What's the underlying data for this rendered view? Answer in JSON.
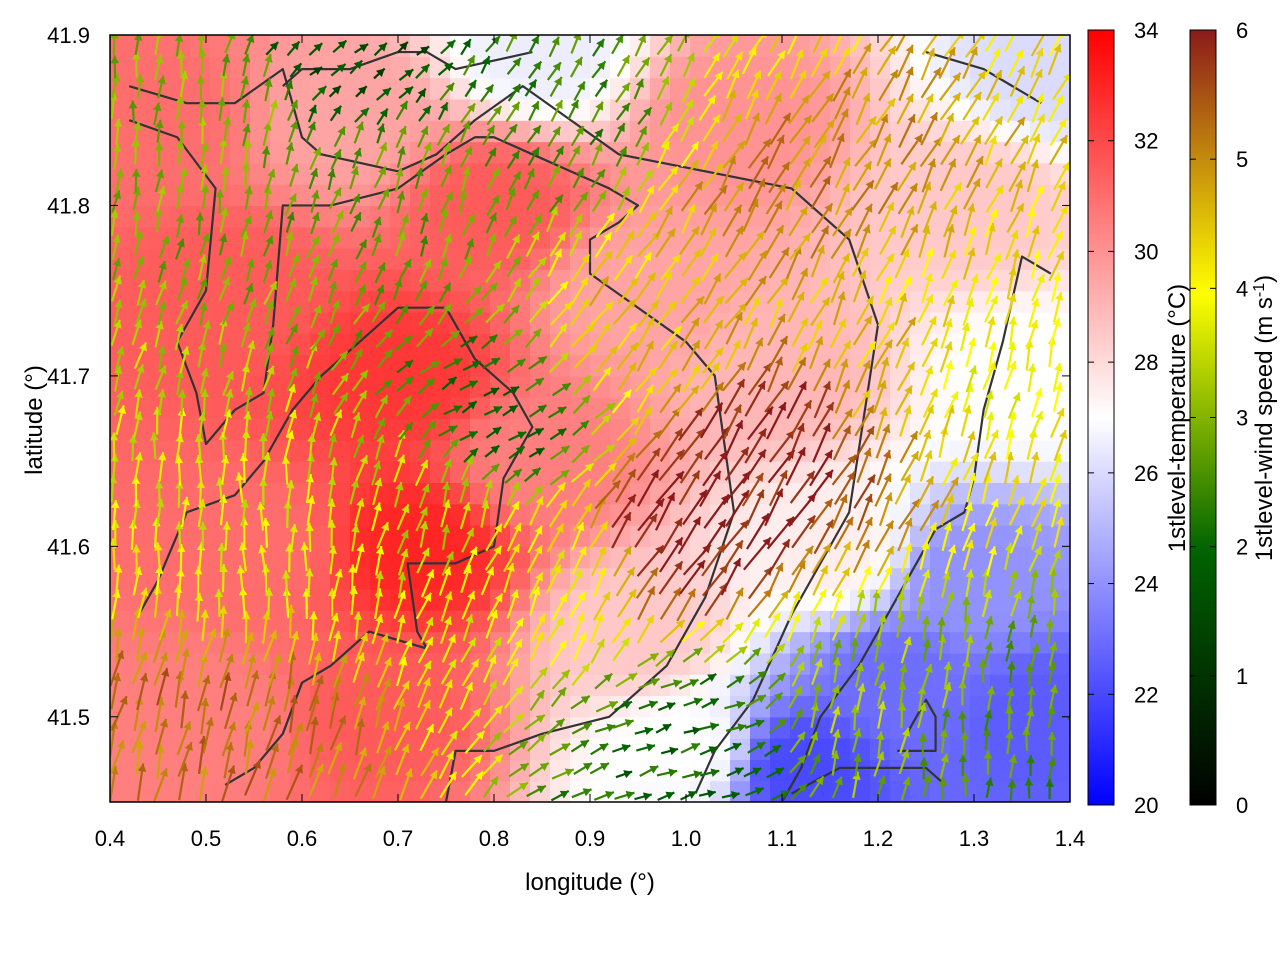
{
  "chart_data": {
    "type": "heatmap",
    "subtype": "vector field over colour-mapped temperature with contour lines",
    "xlabel": "longitude (°)",
    "ylabel": "latitude (°)",
    "xlim": [
      0.4,
      1.4
    ],
    "ylim": [
      41.45,
      41.9
    ],
    "xticks": [
      "0.4",
      "0.5",
      "0.6",
      "0.7",
      "0.8",
      "0.9",
      "1.0",
      "1.1",
      "1.2",
      "1.3",
      "1.4"
    ],
    "yticks": [
      "41.5",
      "41.6",
      "41.7",
      "41.8",
      "41.9"
    ],
    "grid": false,
    "temperature_colorbar": {
      "label": "1stlevel-temperature (°C)",
      "range": [
        20,
        34
      ],
      "ticks": [
        "20",
        "22",
        "24",
        "26",
        "28",
        "30",
        "32",
        "34"
      ],
      "colors": [
        "#0000ff",
        "#ffffff",
        "#ff0000"
      ]
    },
    "wind_colorbar": {
      "label_main": "1stlevel-wind speed (m s",
      "label_sup": "-1",
      "label_end": ")",
      "range": [
        0,
        6
      ],
      "ticks": [
        "0",
        "1",
        "2",
        "3",
        "4",
        "5",
        "6"
      ],
      "colors": [
        "#000000",
        "#006400",
        "#ffff00",
        "#8b1a1a"
      ]
    },
    "temperature_field": [
      {
        "lon": 0.45,
        "lat": 41.85,
        "t": 31.0
      },
      {
        "lon": 0.52,
        "lat": 41.75,
        "t": 31.5
      },
      {
        "lon": 0.55,
        "lat": 41.6,
        "t": 31.0
      },
      {
        "lon": 0.5,
        "lat": 41.5,
        "t": 30.5
      },
      {
        "lon": 0.65,
        "lat": 41.85,
        "t": 29.5
      },
      {
        "lon": 0.7,
        "lat": 41.7,
        "t": 32.5
      },
      {
        "lon": 0.72,
        "lat": 41.6,
        "t": 33.0
      },
      {
        "lon": 0.68,
        "lat": 41.5,
        "t": 31.5
      },
      {
        "lon": 0.8,
        "lat": 41.8,
        "t": 31.5
      },
      {
        "lon": 0.85,
        "lat": 41.65,
        "t": 30.5
      },
      {
        "lon": 0.95,
        "lat": 41.75,
        "t": 29.5
      },
      {
        "lon": 0.95,
        "lat": 41.55,
        "t": 28.5
      },
      {
        "lon": 1.0,
        "lat": 41.48,
        "t": 27.0
      },
      {
        "lon": 1.05,
        "lat": 41.85,
        "t": 30.0
      },
      {
        "lon": 1.1,
        "lat": 41.7,
        "t": 29.0
      },
      {
        "lon": 1.15,
        "lat": 41.6,
        "t": 27.5
      },
      {
        "lon": 1.12,
        "lat": 41.47,
        "t": 22.0
      },
      {
        "lon": 1.22,
        "lat": 41.52,
        "t": 23.0
      },
      {
        "lon": 1.3,
        "lat": 41.58,
        "t": 24.0
      },
      {
        "lon": 1.38,
        "lat": 41.5,
        "t": 22.5
      },
      {
        "lon": 1.3,
        "lat": 41.8,
        "t": 28.5
      },
      {
        "lon": 1.35,
        "lat": 41.7,
        "t": 27.0
      },
      {
        "lon": 0.85,
        "lat": 41.89,
        "t": 26.5
      },
      {
        "lon": 1.38,
        "lat": 41.88,
        "t": 26.0
      }
    ],
    "wind_field": [
      {
        "lon": 0.5,
        "lat": 41.85,
        "speed": 3.0,
        "dir_deg": 95
      },
      {
        "lon": 0.55,
        "lat": 41.6,
        "speed": 3.8,
        "dir_deg": 90
      },
      {
        "lon": 0.52,
        "lat": 41.49,
        "speed": 5.2,
        "dir_deg": 105
      },
      {
        "lon": 0.7,
        "lat": 41.8,
        "speed": 2.8,
        "dir_deg": 110
      },
      {
        "lon": 0.72,
        "lat": 41.62,
        "speed": 3.5,
        "dir_deg": 105
      },
      {
        "lon": 0.85,
        "lat": 41.85,
        "speed": 2.5,
        "dir_deg": 120
      },
      {
        "lon": 0.85,
        "lat": 41.58,
        "speed": 4.0,
        "dir_deg": 115
      },
      {
        "lon": 0.95,
        "lat": 41.72,
        "speed": 4.5,
        "dir_deg": 125
      },
      {
        "lon": 0.98,
        "lat": 41.6,
        "speed": 6.0,
        "dir_deg": 125
      },
      {
        "lon": 1.08,
        "lat": 41.65,
        "speed": 6.0,
        "dir_deg": 120
      },
      {
        "lon": 1.1,
        "lat": 41.8,
        "speed": 5.0,
        "dir_deg": 120
      },
      {
        "lon": 1.2,
        "lat": 41.7,
        "speed": 4.5,
        "dir_deg": 115
      },
      {
        "lon": 1.3,
        "lat": 41.7,
        "speed": 4.0,
        "dir_deg": 105
      },
      {
        "lon": 1.2,
        "lat": 41.5,
        "speed": 3.2,
        "dir_deg": 100
      },
      {
        "lon": 1.33,
        "lat": 41.48,
        "speed": 2.6,
        "dir_deg": 95
      },
      {
        "lon": 1.0,
        "lat": 41.48,
        "speed": 2.0,
        "dir_deg": 160
      },
      {
        "lon": 0.8,
        "lat": 41.67,
        "speed": 2.0,
        "dir_deg": 150
      },
      {
        "lon": 0.65,
        "lat": 41.89,
        "speed": 1.5,
        "dir_deg": 140
      }
    ],
    "contour_lines": [
      [
        [
          0.42,
          41.87
        ],
        [
          0.48,
          41.86
        ],
        [
          0.53,
          41.86
        ],
        [
          0.58,
          41.88
        ],
        [
          0.6,
          41.84
        ],
        [
          0.62,
          41.83
        ],
        [
          0.7,
          41.82
        ],
        [
          0.74,
          41.83
        ],
        [
          0.78,
          41.85
        ],
        [
          0.83,
          41.87
        ],
        [
          0.88,
          41.85
        ],
        [
          0.93,
          41.83
        ],
        [
          1.02,
          41.82
        ],
        [
          1.11,
          41.81
        ],
        [
          1.17,
          41.78
        ],
        [
          1.2,
          41.73
        ],
        [
          1.17,
          41.62
        ],
        [
          1.11,
          41.56
        ],
        [
          1.07,
          41.51
        ],
        [
          1.03,
          41.48
        ],
        [
          1.01,
          41.455
        ]
      ],
      [
        [
          0.42,
          41.85
        ],
        [
          0.47,
          41.84
        ],
        [
          0.51,
          41.81
        ],
        [
          0.5,
          41.75
        ],
        [
          0.48,
          41.73
        ],
        [
          0.47,
          41.72
        ],
        [
          0.49,
          41.69
        ],
        [
          0.5,
          41.66
        ],
        [
          0.53,
          41.68
        ],
        [
          0.56,
          41.69
        ],
        [
          0.57,
          41.73
        ],
        [
          0.58,
          41.8
        ],
        [
          0.6,
          41.8
        ],
        [
          0.63,
          41.8
        ],
        [
          0.7,
          41.81
        ],
        [
          0.75,
          41.83
        ],
        [
          0.78,
          41.84
        ],
        [
          0.8,
          41.84
        ],
        [
          0.84,
          41.83
        ],
        [
          0.88,
          41.82
        ],
        [
          0.92,
          41.81
        ],
        [
          0.95,
          41.8
        ],
        [
          0.93,
          41.79
        ],
        [
          0.9,
          41.78
        ],
        [
          0.9,
          41.76
        ],
        [
          0.95,
          41.74
        ],
        [
          1.0,
          41.72
        ],
        [
          1.03,
          41.7
        ],
        [
          1.04,
          41.66
        ],
        [
          1.05,
          41.62
        ],
        [
          1.02,
          41.57
        ],
        [
          0.98,
          41.53
        ],
        [
          0.92,
          41.5
        ],
        [
          0.85,
          41.49
        ],
        [
          0.8,
          41.48
        ],
        [
          0.76,
          41.48
        ],
        [
          0.75,
          41.45
        ]
      ],
      [
        [
          0.43,
          41.56
        ],
        [
          0.45,
          41.58
        ],
        [
          0.48,
          41.62
        ],
        [
          0.53,
          41.63
        ],
        [
          0.56,
          41.65
        ],
        [
          0.59,
          41.68
        ],
        [
          0.62,
          41.7
        ],
        [
          0.66,
          41.72
        ],
        [
          0.7,
          41.74
        ],
        [
          0.75,
          41.74
        ],
        [
          0.78,
          41.71
        ],
        [
          0.82,
          41.69
        ],
        [
          0.84,
          41.67
        ],
        [
          0.81,
          41.64
        ],
        [
          0.8,
          41.6
        ],
        [
          0.76,
          41.59
        ],
        [
          0.71,
          41.59
        ],
        [
          0.72,
          41.55
        ],
        [
          0.73,
          41.54
        ],
        [
          0.67,
          41.55
        ],
        [
          0.63,
          41.53
        ],
        [
          0.6,
          41.52
        ],
        [
          0.58,
          41.49
        ],
        [
          0.55,
          41.47
        ],
        [
          0.52,
          41.46
        ]
      ],
      [
        [
          1.38,
          41.76
        ],
        [
          1.35,
          41.77
        ],
        [
          1.33,
          41.72
        ],
        [
          1.31,
          41.68
        ],
        [
          1.3,
          41.64
        ],
        [
          1.29,
          41.62
        ],
        [
          1.26,
          41.61
        ],
        [
          1.22,
          41.57
        ],
        [
          1.18,
          41.53
        ],
        [
          1.14,
          41.5
        ],
        [
          1.12,
          41.47
        ],
        [
          1.1,
          41.45
        ]
      ],
      [
        [
          1.23,
          41.49
        ],
        [
          1.25,
          41.51
        ],
        [
          1.26,
          41.5
        ],
        [
          1.26,
          41.48
        ],
        [
          1.22,
          41.48
        ]
      ],
      [
        [
          1.11,
          41.455
        ],
        [
          1.16,
          41.47
        ],
        [
          1.2,
          41.47
        ],
        [
          1.25,
          41.47
        ],
        [
          1.27,
          41.46
        ]
      ],
      [
        [
          1.25,
          41.89
        ],
        [
          1.31,
          41.88
        ],
        [
          1.34,
          41.87
        ],
        [
          1.37,
          41.86
        ]
      ],
      [
        [
          0.58,
          41.87
        ],
        [
          0.6,
          41.88
        ],
        [
          0.65,
          41.88
        ],
        [
          0.7,
          41.89
        ],
        [
          0.73,
          41.89
        ],
        [
          0.76,
          41.88
        ],
        [
          0.8,
          41.885
        ],
        [
          0.84,
          41.89
        ]
      ]
    ]
  }
}
